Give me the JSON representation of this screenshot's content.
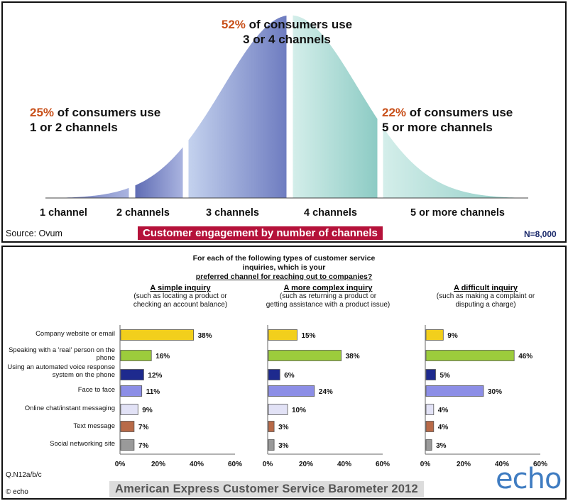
{
  "top_panel": {
    "callout_left": {
      "pct": "25%",
      "line1": " of consumers use",
      "line2": "1 or 2 channels"
    },
    "callout_mid": {
      "pct": "52%",
      "line1": " of consumers use",
      "line2": "3 or 4 channels"
    },
    "callout_right": {
      "pct": "22%",
      "line1": " of consumers use",
      "line2": "5 or more channels"
    },
    "channel_labels": [
      "1 channel",
      "2 channels",
      "3 channels",
      "4 channels",
      "5 or more channels"
    ],
    "source": "Source: Ovum",
    "banner": "Customer engagement by number of channels",
    "n_value": "N=8,000"
  },
  "bottom_panel": {
    "question_line1": "For each of the following types of customer service",
    "question_line2": "inquiries, which is your",
    "question_line3": "preferred channel for reaching out to companies?",
    "question_code": "Q.N12a/b/c",
    "copyright": "© echo",
    "banner": "American Express Customer Service Barometer 2012",
    "logo": "echo"
  },
  "chart_data": [
    {
      "type": "area",
      "series": [
        {
          "name": "1 channel",
          "color": "#8090c8"
        },
        {
          "name": "2 channels",
          "color": "#8090c8"
        },
        {
          "name": "3 channels",
          "color": "#8090c8"
        },
        {
          "name": "4 channels",
          "color": "#a8d8d0"
        },
        {
          "name": "5 or more channels",
          "color": "#a8d8d0"
        }
      ],
      "grouped_shares": [
        {
          "group": "1 or 2 channels",
          "value": 25
        },
        {
          "group": "3 or 4 channels",
          "value": 52
        },
        {
          "group": "5 or more channels",
          "value": 22
        }
      ]
    },
    {
      "type": "bar",
      "orientation": "horizontal",
      "categories": [
        "Company website or email",
        "Speaking with a 'real' person on the phone",
        "Using an automated voice response system on the phone",
        "Face to face",
        "Online chat/instant messaging",
        "Text message",
        "Social networking site"
      ],
      "colors": [
        "#f2cf1c",
        "#9ccc3c",
        "#1e2a8e",
        "#8c8ee6",
        "#e2e2f6",
        "#b86a48",
        "#9a9a9a"
      ],
      "xlim": [
        0,
        60
      ],
      "xticks": [
        "0%",
        "20%",
        "40%",
        "60%"
      ],
      "panels": [
        {
          "title": "A simple inquiry",
          "subtitle_line1": "(such as locating a product or",
          "subtitle_line2": "checking an account balance)",
          "values": [
            38,
            16,
            12,
            11,
            9,
            7,
            7
          ]
        },
        {
          "title": "A more complex inquiry",
          "subtitle_line1": "(such as returning a product or",
          "subtitle_line2": "getting assistance with a product issue)",
          "values": [
            15,
            38,
            6,
            24,
            10,
            3,
            3
          ]
        },
        {
          "title": "A difficult inquiry",
          "subtitle_line1": "(such as making a complaint or",
          "subtitle_line2": "disputing a charge)",
          "values": [
            9,
            46,
            5,
            30,
            4,
            4,
            3
          ]
        }
      ]
    }
  ]
}
